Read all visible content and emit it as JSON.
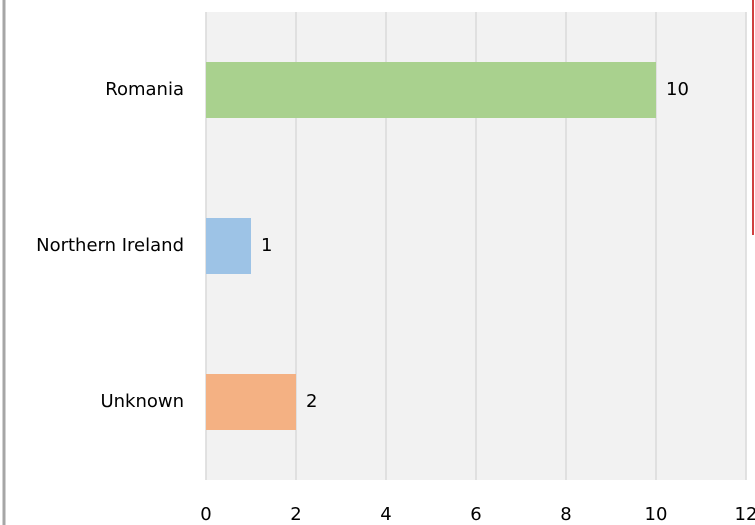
{
  "chart_data": {
    "type": "barh",
    "categories": [
      "Romania",
      "Northern Ireland",
      "Unknown"
    ],
    "values": [
      10,
      1,
      2
    ],
    "colors": [
      "#a9d18e",
      "#9dc3e6",
      "#f4b183"
    ],
    "xlim": [
      0,
      12
    ],
    "xticks": [
      0,
      2,
      4,
      6,
      8,
      10,
      12
    ],
    "grid": true
  }
}
